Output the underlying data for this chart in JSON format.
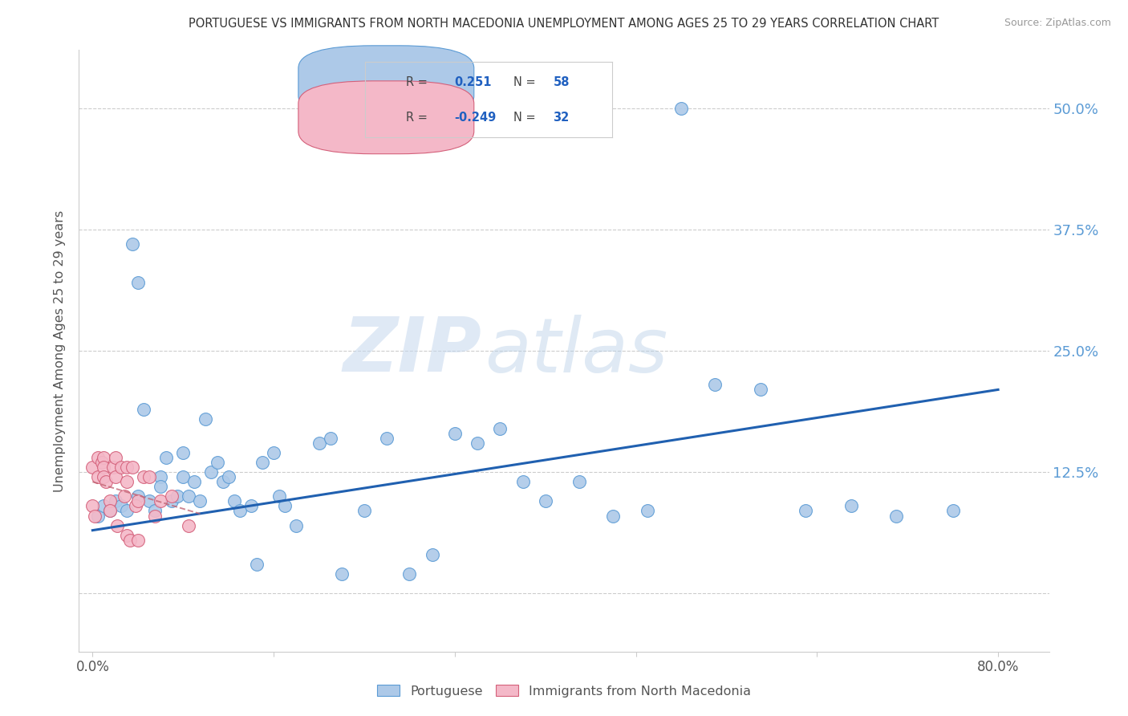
{
  "title": "PORTUGUESE VS IMMIGRANTS FROM NORTH MACEDONIA UNEMPLOYMENT AMONG AGES 25 TO 29 YEARS CORRELATION CHART",
  "source": "Source: ZipAtlas.com",
  "ylabel": "Unemployment Among Ages 25 to 29 years",
  "background_color": "#ffffff",
  "portuguese_color": "#adc9e8",
  "portuguese_edge_color": "#5b9bd5",
  "immigrants_color": "#f4b8c8",
  "immigrants_edge_color": "#d4607a",
  "portuguese_R": "0.251",
  "portuguese_N": "58",
  "immigrants_R": "-0.249",
  "immigrants_N": "32",
  "portuguese_line_color": "#2060b0",
  "immigrants_line_color": "#c06070",
  "legend_label_1": "Portuguese",
  "legend_label_2": "Immigrants from North Macedonia",
  "watermark_zip": "ZIP",
  "watermark_atlas": "atlas",
  "right_tick_color": "#5b9bd5",
  "xlim_low": -0.012,
  "xlim_high": 0.845,
  "ylim_low": -0.06,
  "ylim_high": 0.56,
  "port_x": [
    0.005,
    0.01,
    0.015,
    0.02,
    0.025,
    0.03,
    0.035,
    0.04,
    0.04,
    0.045,
    0.05,
    0.055,
    0.06,
    0.06,
    0.065,
    0.07,
    0.075,
    0.08,
    0.08,
    0.085,
    0.09,
    0.095,
    0.1,
    0.105,
    0.11,
    0.115,
    0.12,
    0.125,
    0.13,
    0.14,
    0.145,
    0.15,
    0.16,
    0.165,
    0.17,
    0.18,
    0.2,
    0.21,
    0.22,
    0.24,
    0.26,
    0.28,
    0.3,
    0.32,
    0.34,
    0.36,
    0.38,
    0.4,
    0.43,
    0.46,
    0.49,
    0.52,
    0.55,
    0.59,
    0.63,
    0.67,
    0.71,
    0.76
  ],
  "port_y": [
    0.08,
    0.09,
    0.085,
    0.095,
    0.09,
    0.085,
    0.36,
    0.32,
    0.1,
    0.19,
    0.095,
    0.085,
    0.12,
    0.11,
    0.14,
    0.095,
    0.1,
    0.145,
    0.12,
    0.1,
    0.115,
    0.095,
    0.18,
    0.125,
    0.135,
    0.115,
    0.12,
    0.095,
    0.085,
    0.09,
    0.03,
    0.135,
    0.145,
    0.1,
    0.09,
    0.07,
    0.155,
    0.16,
    0.02,
    0.085,
    0.16,
    0.02,
    0.04,
    0.165,
    0.155,
    0.17,
    0.115,
    0.095,
    0.115,
    0.08,
    0.085,
    0.5,
    0.215,
    0.21,
    0.085,
    0.09,
    0.08,
    0.085
  ],
  "immig_x": [
    0.0,
    0.0,
    0.002,
    0.005,
    0.005,
    0.008,
    0.01,
    0.01,
    0.01,
    0.012,
    0.015,
    0.015,
    0.018,
    0.02,
    0.02,
    0.022,
    0.025,
    0.028,
    0.03,
    0.03,
    0.03,
    0.033,
    0.035,
    0.038,
    0.04,
    0.04,
    0.045,
    0.05,
    0.055,
    0.06,
    0.07,
    0.085
  ],
  "immig_y": [
    0.13,
    0.09,
    0.08,
    0.14,
    0.12,
    0.135,
    0.14,
    0.13,
    0.12,
    0.115,
    0.095,
    0.085,
    0.13,
    0.14,
    0.12,
    0.07,
    0.13,
    0.1,
    0.13,
    0.115,
    0.06,
    0.055,
    0.13,
    0.09,
    0.095,
    0.055,
    0.12,
    0.12,
    0.08,
    0.095,
    0.1,
    0.07
  ]
}
